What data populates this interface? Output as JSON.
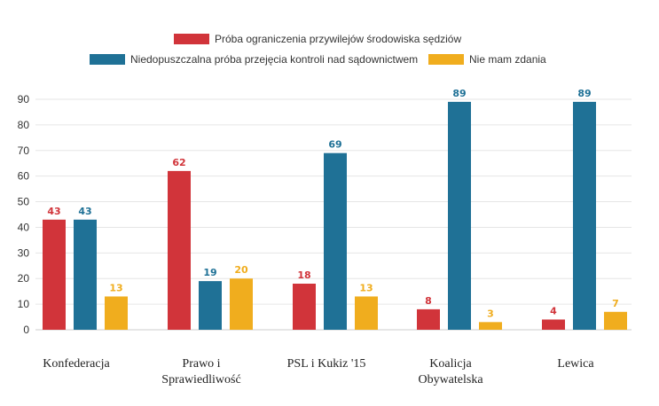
{
  "chart_data": {
    "type": "bar",
    "categories": [
      [
        "Konfederacja"
      ],
      [
        "Prawo i",
        "Sprawiedliwość"
      ],
      [
        "PSL i Kukiz '15"
      ],
      [
        "Koalicja",
        "Obywatelska"
      ],
      [
        "Lewica"
      ]
    ],
    "series": [
      {
        "name": "Próba ograniczenia przywilejów środowiska sędziów",
        "color": "#d1343a",
        "values": [
          43,
          62,
          18,
          8,
          4
        ]
      },
      {
        "name": "Niedopuszczalna próba przejęcia kontroli nad sądownictwem",
        "color": "#1f7196",
        "values": [
          43,
          19,
          69,
          89,
          89
        ]
      },
      {
        "name": "Nie mam zdania",
        "color": "#f0ad1e",
        "values": [
          13,
          20,
          13,
          3,
          7
        ]
      }
    ],
    "yticks": [
      0,
      10,
      20,
      30,
      40,
      50,
      60,
      70,
      80,
      90
    ],
    "ylim": [
      0,
      90
    ],
    "grid": true,
    "legend_position": "top-center",
    "title": "",
    "xlabel": "",
    "ylabel": ""
  }
}
